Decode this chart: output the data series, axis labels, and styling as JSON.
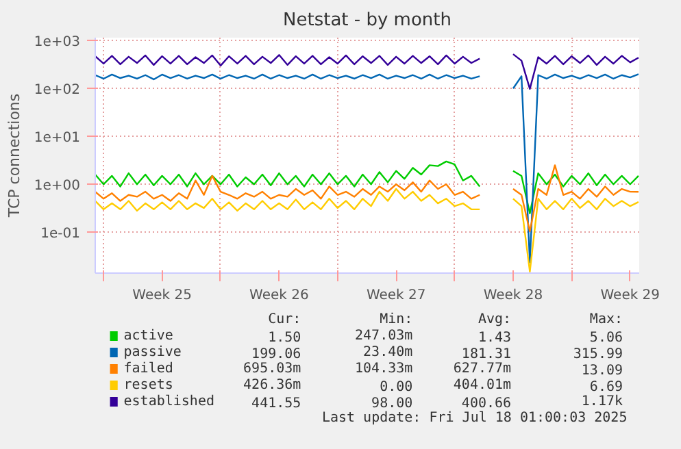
{
  "chart_data": {
    "type": "line",
    "title": "Netstat - by month",
    "ylabel": "TCP connections",
    "log": true,
    "grid": true,
    "legend": "bottom",
    "ylim": [
      0.014,
      1150
    ],
    "yticks": [
      {
        "value": 0.1,
        "label": "1e-01"
      },
      {
        "value": 1,
        "label": "1e+00"
      },
      {
        "value": 10,
        "label": "1e+01"
      },
      {
        "value": 100,
        "label": "1e+02"
      },
      {
        "value": 1000,
        "label": "1e+03"
      }
    ],
    "xlim": [
      "2025-06-15T12:00",
      "2025-07-18T01:00"
    ],
    "xticks": [
      {
        "value": "2025-06-16T00:00",
        "label": null
      },
      {
        "value": "2025-06-19T12:00",
        "label": "Week 25"
      },
      {
        "value": "2025-06-23T00:00",
        "label": null
      },
      {
        "value": "2025-06-26T12:00",
        "label": "Week 26"
      },
      {
        "value": "2025-06-30T00:00",
        "label": null
      },
      {
        "value": "2025-07-03T12:00",
        "label": "Week 27"
      },
      {
        "value": "2025-07-07T00:00",
        "label": null
      },
      {
        "value": "2025-07-10T12:00",
        "label": "Week 28"
      },
      {
        "value": "2025-07-14T00:00",
        "label": null
      },
      {
        "value": "2025-07-17T12:00",
        "label": "Week 29"
      }
    ],
    "x": [
      "2025-06-15T12:00",
      "2025-06-16T00:00",
      "2025-06-16T12:00",
      "2025-06-17T00:00",
      "2025-06-17T12:00",
      "2025-06-18T00:00",
      "2025-06-18T12:00",
      "2025-06-19T00:00",
      "2025-06-19T12:00",
      "2025-06-20T00:00",
      "2025-06-20T12:00",
      "2025-06-21T00:00",
      "2025-06-21T12:00",
      "2025-06-22T00:00",
      "2025-06-22T12:00",
      "2025-06-23T00:00",
      "2025-06-23T12:00",
      "2025-06-24T00:00",
      "2025-06-24T12:00",
      "2025-06-25T00:00",
      "2025-06-25T12:00",
      "2025-06-26T00:00",
      "2025-06-26T12:00",
      "2025-06-27T00:00",
      "2025-06-27T12:00",
      "2025-06-28T00:00",
      "2025-06-28T12:00",
      "2025-06-29T00:00",
      "2025-06-29T12:00",
      "2025-06-30T00:00",
      "2025-06-30T12:00",
      "2025-07-01T00:00",
      "2025-07-01T12:00",
      "2025-07-02T00:00",
      "2025-07-02T12:00",
      "2025-07-03T00:00",
      "2025-07-03T12:00",
      "2025-07-04T00:00",
      "2025-07-04T12:00",
      "2025-07-05T00:00",
      "2025-07-05T12:00",
      "2025-07-06T00:00",
      "2025-07-06T12:00",
      "2025-07-07T00:00",
      "2025-07-07T12:00",
      "2025-07-08T00:00",
      "2025-07-08T12:00",
      "2025-07-09T00:00",
      "2025-07-09T12:00",
      "2025-07-10T00:00",
      "2025-07-10T12:00",
      "2025-07-11T00:00",
      "2025-07-11T12:00",
      "2025-07-12T00:00",
      "2025-07-12T12:00",
      "2025-07-13T00:00",
      "2025-07-13T12:00",
      "2025-07-14T00:00",
      "2025-07-14T12:00",
      "2025-07-15T00:00",
      "2025-07-15T12:00",
      "2025-07-16T00:00",
      "2025-07-16T12:00",
      "2025-07-17T00:00",
      "2025-07-17T12:00",
      "2025-07-18T00:00"
    ],
    "series": [
      {
        "name": "active",
        "color": "#00cc00",
        "values": [
          1.6,
          1.0,
          1.5,
          0.9,
          1.7,
          1.0,
          1.6,
          0.95,
          1.5,
          1.0,
          1.6,
          0.9,
          1.7,
          1.0,
          1.5,
          1.0,
          1.6,
          0.9,
          1.4,
          1.0,
          1.6,
          0.95,
          1.7,
          1.0,
          1.5,
          0.9,
          1.6,
          1.0,
          1.7,
          1.0,
          1.5,
          0.9,
          1.6,
          1.0,
          1.8,
          1.1,
          1.9,
          1.3,
          2.2,
          1.6,
          2.5,
          2.4,
          3.0,
          2.6,
          1.2,
          1.5,
          0.9,
          null,
          null,
          null,
          1.9,
          1.5,
          0.247,
          1.7,
          1.0,
          1.6,
          0.9,
          1.5,
          1.0,
          1.7,
          0.95,
          1.6,
          1.0,
          1.5,
          1.0,
          1.5
        ]
      },
      {
        "name": "passive",
        "color": "#0066b3",
        "values": [
          190,
          160,
          195,
          165,
          185,
          160,
          190,
          155,
          195,
          165,
          190,
          160,
          185,
          165,
          195,
          160,
          190,
          165,
          185,
          160,
          195,
          160,
          190,
          165,
          185,
          160,
          195,
          160,
          190,
          165,
          185,
          160,
          190,
          165,
          195,
          160,
          185,
          165,
          190,
          160,
          195,
          160,
          190,
          165,
          185,
          160,
          180,
          null,
          null,
          null,
          100,
          180,
          0.0234,
          190,
          160,
          195,
          165,
          185,
          160,
          190,
          165,
          195,
          160,
          190,
          170,
          199
        ]
      },
      {
        "name": "failed",
        "color": "#ff8000",
        "values": [
          0.7,
          0.5,
          0.65,
          0.45,
          0.6,
          0.55,
          0.7,
          0.5,
          0.6,
          0.45,
          0.65,
          0.5,
          1.2,
          0.6,
          1.5,
          0.7,
          0.6,
          0.5,
          0.65,
          0.55,
          0.7,
          0.5,
          0.6,
          0.55,
          0.8,
          0.6,
          0.75,
          0.5,
          0.9,
          0.6,
          0.7,
          0.55,
          0.8,
          0.6,
          0.9,
          0.7,
          1.0,
          0.75,
          1.1,
          0.7,
          1.2,
          0.8,
          1.0,
          0.6,
          0.7,
          0.5,
          0.6,
          null,
          null,
          null,
          0.8,
          0.6,
          0.104,
          0.8,
          0.6,
          2.5,
          0.6,
          0.7,
          0.5,
          0.8,
          0.55,
          0.9,
          0.6,
          0.8,
          0.7,
          0.695
        ]
      },
      {
        "name": "resets",
        "color": "#ffcc00",
        "values": [
          0.45,
          0.3,
          0.4,
          0.3,
          0.45,
          0.28,
          0.4,
          0.3,
          0.42,
          0.3,
          0.45,
          0.3,
          0.4,
          0.32,
          0.5,
          0.3,
          0.42,
          0.28,
          0.4,
          0.3,
          0.45,
          0.3,
          0.4,
          0.3,
          0.48,
          0.3,
          0.42,
          0.3,
          0.5,
          0.32,
          0.45,
          0.3,
          0.5,
          0.35,
          0.7,
          0.45,
          0.8,
          0.5,
          0.7,
          0.45,
          0.6,
          0.4,
          0.5,
          0.35,
          0.4,
          0.3,
          0.3,
          null,
          null,
          null,
          0.5,
          0.35,
          0.015,
          0.5,
          0.3,
          0.45,
          0.3,
          0.5,
          0.32,
          0.45,
          0.3,
          0.5,
          0.35,
          0.45,
          0.35,
          0.426
        ]
      },
      {
        "name": "established",
        "color": "#330099",
        "values": [
          470,
          330,
          480,
          320,
          460,
          340,
          490,
          310,
          470,
          330,
          480,
          320,
          450,
          340,
          490,
          300,
          470,
          330,
          480,
          320,
          460,
          340,
          500,
          310,
          470,
          330,
          480,
          320,
          450,
          330,
          490,
          320,
          470,
          340,
          480,
          310,
          460,
          330,
          480,
          340,
          470,
          320,
          490,
          330,
          460,
          340,
          420,
          null,
          null,
          null,
          520,
          380,
          98,
          450,
          330,
          480,
          320,
          470,
          340,
          490,
          310,
          460,
          330,
          480,
          350,
          440
        ]
      }
    ],
    "annotations": [
      "Cur:",
      "Min:",
      "Avg:",
      "Max:",
      "1.50",
      "247.03m",
      "1.43",
      "5.06",
      "199.06",
      "23.40m",
      "181.31",
      "315.99",
      "695.03m",
      "104.33m",
      "627.77m",
      "13.09",
      "426.36m",
      "0.00",
      "404.01m",
      "6.69",
      "441.55",
      "98.00",
      "400.66",
      "1.17k",
      "Last update: Fri Jul 18 01:00:03 2025"
    ]
  }
}
